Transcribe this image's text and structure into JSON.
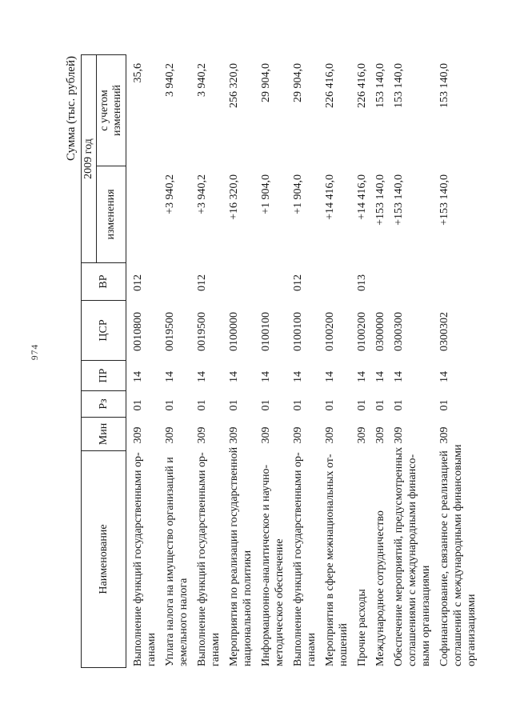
{
  "page": {
    "number": "974",
    "caption": "Сумма (тыс. рублей)"
  },
  "table": {
    "headers": {
      "name": "Наименование",
      "min": "Мин",
      "rz": "Рз",
      "pr": "ПР",
      "csr": "ЦСР",
      "vr": "ВР",
      "year": "2009 год",
      "izm": "изменения",
      "uch": [
        "с учетом",
        "изменений"
      ]
    },
    "rows": [
      {
        "name": [
          "Выполнение функций государственными ор-",
          "ганами"
        ],
        "min": "309",
        "rz": "01",
        "pr": "14",
        "csr": "0010800",
        "vr": "012",
        "izm": "",
        "uch": "35,6"
      },
      {
        "name": [
          "Уплата налога на имущество организаций и",
          "земельного налога"
        ],
        "min": "309",
        "rz": "01",
        "pr": "14",
        "csr": "0019500",
        "vr": "",
        "izm": "+3 940,2",
        "uch": "3 940,2"
      },
      {
        "name": [
          "Выполнение функций государственными ор-",
          "ганами"
        ],
        "min": "309",
        "rz": "01",
        "pr": "14",
        "csr": "0019500",
        "vr": "012",
        "izm": "+3 940,2",
        "uch": "3 940,2"
      },
      {
        "name": [
          "Мероприятия по реализации государственной",
          "национальной политики"
        ],
        "min": "309",
        "rz": "01",
        "pr": "14",
        "csr": "0100000",
        "vr": "",
        "izm": "+16 320,0",
        "uch": "256 320,0"
      },
      {
        "name": [
          "Информационно-аналитическое и научно-",
          "методическое обеспечение"
        ],
        "min": "309",
        "rz": "01",
        "pr": "14",
        "csr": "0100100",
        "vr": "",
        "izm": "+1 904,0",
        "uch": "29 904,0"
      },
      {
        "name": [
          "Выполнение функций государственными ор-",
          "ганами"
        ],
        "min": "309",
        "rz": "01",
        "pr": "14",
        "csr": "0100100",
        "vr": "012",
        "izm": "+1 904,0",
        "uch": "29 904,0"
      },
      {
        "name": [
          "Мероприятия в сфере межнациональных от-",
          "ношений"
        ],
        "min": "309",
        "rz": "01",
        "pr": "14",
        "csr": "0100200",
        "vr": "",
        "izm": "+14 416,0",
        "uch": "226 416,0"
      },
      {
        "name": [
          "Прочие расходы"
        ],
        "min": "309",
        "rz": "01",
        "pr": "14",
        "csr": "0100200",
        "vr": "013",
        "izm": "+14 416,0",
        "uch": "226 416,0"
      },
      {
        "name": [
          "Международное сотрудничество"
        ],
        "min": "309",
        "rz": "01",
        "pr": "14",
        "csr": "0300000",
        "vr": "",
        "izm": "+153 140,0",
        "uch": "153 140,0"
      },
      {
        "name": [
          "Обеспечение мероприятий, предусмотренных",
          "соглашениями с международными финансо-",
          "выми организациями"
        ],
        "min": "309",
        "rz": "01",
        "pr": "14",
        "csr": "0300300",
        "vr": "",
        "izm": "+153 140,0",
        "uch": "153 140,0"
      },
      {
        "name": [
          "Софинансирование, связанное с реализацией",
          "соглашений с международными финансовыми",
          "организациями"
        ],
        "min": "309",
        "rz": "01",
        "pr": "14",
        "csr": "0300302",
        "vr": "",
        "izm": "+153 140,0",
        "uch": "153 140,0"
      }
    ]
  }
}
